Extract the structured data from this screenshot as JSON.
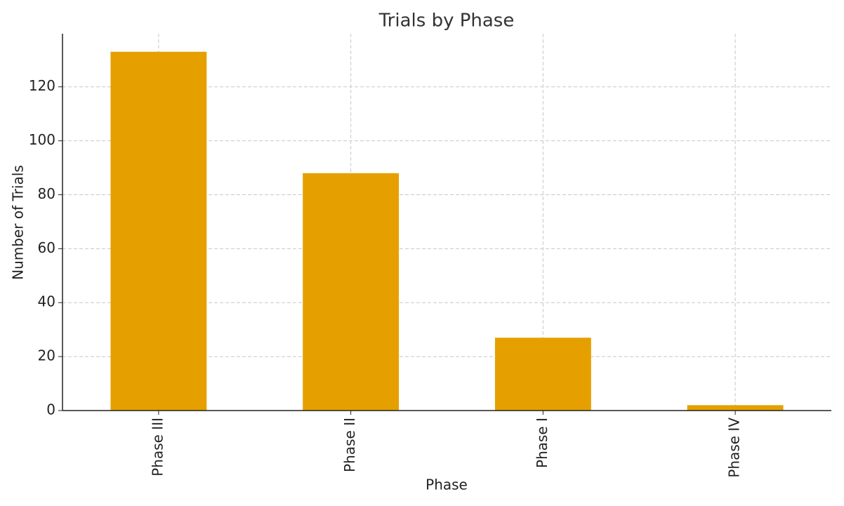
{
  "chart_data": {
    "type": "bar",
    "title": "Trials by Phase",
    "xlabel": "Phase",
    "ylabel": "Number of Trials",
    "categories": [
      "Phase III",
      "Phase II",
      "Phase I",
      "Phase IV"
    ],
    "values": [
      133,
      88,
      27,
      2
    ],
    "color": "#e5a000",
    "ylim": [
      0,
      139.7
    ],
    "yticks": [
      0,
      20,
      40,
      60,
      80,
      100,
      120
    ],
    "grid": true
  }
}
